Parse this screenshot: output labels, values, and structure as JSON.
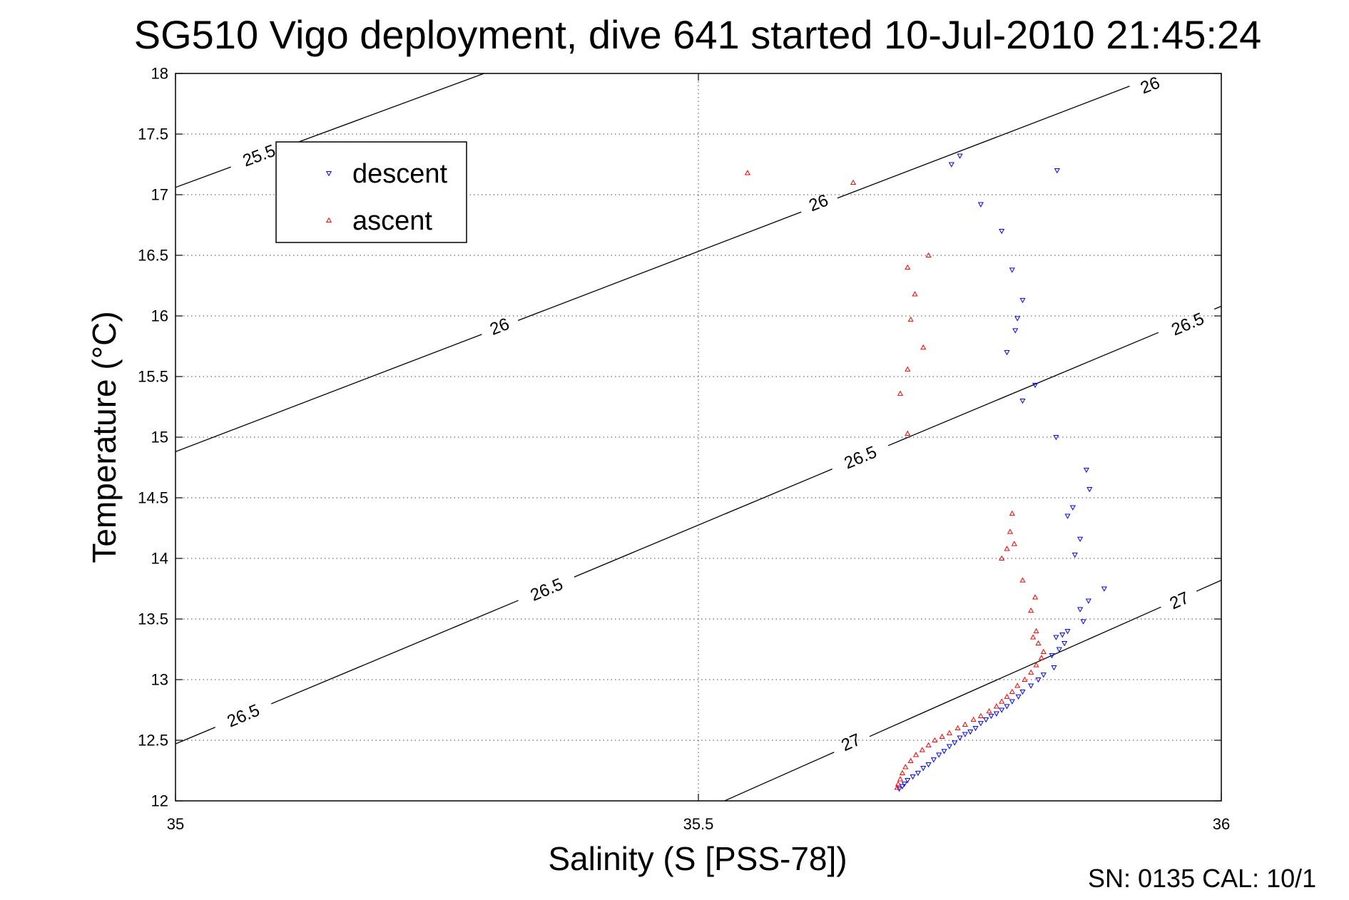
{
  "footer_text": "SN: 0135  CAL: 10/1",
  "chart_data": {
    "type": "scatter",
    "title": "SG510 Vigo deployment, dive 641 started 10-Jul-2010 21:45:24",
    "xlabel": "Salinity (S [PSS-78])",
    "ylabel": "Temperature (°C)",
    "xlim": [
      35,
      36
    ],
    "ylim": [
      12,
      18
    ],
    "x_ticks": [
      35,
      35.5,
      36
    ],
    "x_tick_labels": [
      "35",
      "35.5",
      "36"
    ],
    "y_ticks": [
      12,
      12.5,
      13,
      13.5,
      14,
      14.5,
      15,
      15.5,
      16,
      16.5,
      17,
      17.5,
      18
    ],
    "y_tick_labels": [
      "12",
      "12.5",
      "13",
      "13.5",
      "14",
      "14.5",
      "15",
      "15.5",
      "16",
      "16.5",
      "17",
      "17.5",
      "18"
    ],
    "grid": true,
    "legend": {
      "position": "top-left",
      "entries": [
        "descent",
        "ascent"
      ]
    },
    "series": [
      {
        "name": "descent",
        "marker": "triangle-down",
        "color": "#0000ff",
        "points": [
          [
            35.742,
            17.25
          ],
          [
            35.75,
            17.32
          ],
          [
            35.843,
            17.2
          ],
          [
            35.77,
            16.92
          ],
          [
            35.79,
            16.7
          ],
          [
            35.8,
            16.38
          ],
          [
            35.81,
            16.13
          ],
          [
            35.805,
            15.98
          ],
          [
            35.803,
            15.88
          ],
          [
            35.795,
            15.7
          ],
          [
            35.822,
            15.43
          ],
          [
            35.81,
            15.3
          ],
          [
            35.842,
            15.0
          ],
          [
            35.871,
            14.73
          ],
          [
            35.874,
            14.57
          ],
          [
            35.858,
            14.42
          ],
          [
            35.853,
            14.35
          ],
          [
            35.865,
            14.16
          ],
          [
            35.86,
            14.03
          ],
          [
            35.888,
            13.75
          ],
          [
            35.873,
            13.65
          ],
          [
            35.865,
            13.58
          ],
          [
            35.868,
            13.48
          ],
          [
            35.853,
            13.4
          ],
          [
            35.848,
            13.37
          ],
          [
            35.842,
            13.35
          ],
          [
            35.85,
            13.3
          ],
          [
            35.845,
            13.25
          ],
          [
            35.838,
            13.2
          ],
          [
            35.84,
            13.1
          ],
          [
            35.83,
            13.04
          ],
          [
            35.825,
            13.0
          ],
          [
            35.818,
            12.95
          ],
          [
            35.81,
            12.9
          ],
          [
            35.806,
            12.86
          ],
          [
            35.8,
            12.82
          ],
          [
            35.795,
            12.78
          ],
          [
            35.79,
            12.75
          ],
          [
            35.785,
            12.72
          ],
          [
            35.78,
            12.7
          ],
          [
            35.775,
            12.67
          ],
          [
            35.77,
            12.64
          ],
          [
            35.765,
            12.6
          ],
          [
            35.76,
            12.57
          ],
          [
            35.755,
            12.55
          ],
          [
            35.75,
            12.52
          ],
          [
            35.745,
            12.48
          ],
          [
            35.74,
            12.45
          ],
          [
            35.735,
            12.41
          ],
          [
            35.73,
            12.38
          ],
          [
            35.725,
            12.34
          ],
          [
            35.72,
            12.3
          ],
          [
            35.715,
            12.27
          ],
          [
            35.71,
            12.23
          ],
          [
            35.705,
            12.2
          ],
          [
            35.7,
            12.17
          ],
          [
            35.697,
            12.14
          ],
          [
            35.695,
            12.12
          ],
          [
            35.692,
            12.1
          ]
        ]
      },
      {
        "name": "ascent",
        "marker": "triangle-up",
        "color": "#ff0000",
        "points": [
          [
            35.547,
            17.18
          ],
          [
            35.648,
            17.1
          ],
          [
            35.72,
            16.5
          ],
          [
            35.7,
            16.4
          ],
          [
            35.707,
            16.18
          ],
          [
            35.703,
            15.97
          ],
          [
            35.715,
            15.74
          ],
          [
            35.7,
            15.56
          ],
          [
            35.693,
            15.36
          ],
          [
            35.7,
            15.03
          ],
          [
            35.8,
            14.37
          ],
          [
            35.798,
            14.22
          ],
          [
            35.802,
            14.12
          ],
          [
            35.795,
            14.08
          ],
          [
            35.79,
            14.0
          ],
          [
            35.81,
            13.82
          ],
          [
            35.822,
            13.68
          ],
          [
            35.818,
            13.57
          ],
          [
            35.823,
            13.4
          ],
          [
            35.82,
            13.35
          ],
          [
            35.825,
            13.3
          ],
          [
            35.83,
            13.23
          ],
          [
            35.828,
            13.18
          ],
          [
            35.823,
            13.12
          ],
          [
            35.818,
            13.06
          ],
          [
            35.812,
            13.0
          ],
          [
            35.805,
            12.95
          ],
          [
            35.8,
            12.9
          ],
          [
            35.795,
            12.86
          ],
          [
            35.79,
            12.82
          ],
          [
            35.785,
            12.78
          ],
          [
            35.778,
            12.74
          ],
          [
            35.77,
            12.7
          ],
          [
            35.763,
            12.67
          ],
          [
            35.755,
            12.63
          ],
          [
            35.748,
            12.6
          ],
          [
            35.74,
            12.56
          ],
          [
            35.733,
            12.53
          ],
          [
            35.726,
            12.5
          ],
          [
            35.72,
            12.46
          ],
          [
            35.714,
            12.42
          ],
          [
            35.708,
            12.38
          ],
          [
            35.703,
            12.33
          ],
          [
            35.698,
            12.28
          ],
          [
            35.695,
            12.23
          ],
          [
            35.693,
            12.18
          ],
          [
            35.691,
            12.14
          ],
          [
            35.69,
            12.11
          ]
        ]
      }
    ],
    "contours": [
      {
        "level": 25.5,
        "line": [
          [
            35,
            17.06
          ],
          [
            35.295,
            18
          ]
        ],
        "labels": [
          {
            "text": "25.5",
            "at": [
              35.08,
              17.32
            ]
          }
        ]
      },
      {
        "level": 26,
        "line": [
          [
            35,
            14.88
          ],
          [
            35.944,
            18
          ]
        ],
        "labels": [
          {
            "text": "26",
            "at": [
              35.31,
              15.91
            ]
          },
          {
            "text": "26",
            "at": [
              35.615,
              16.93
            ]
          },
          {
            "text": "26",
            "at": [
              35.932,
              17.9
            ]
          }
        ]
      },
      {
        "level": 26.5,
        "line": [
          [
            35,
            12.47
          ],
          [
            36,
            16.08
          ]
        ],
        "labels": [
          {
            "text": "26.5",
            "at": [
              35.065,
              12.7
            ]
          },
          {
            "text": "26.5",
            "at": [
              35.355,
              13.74
            ]
          },
          {
            "text": "26.5",
            "at": [
              35.655,
              14.83
            ]
          },
          {
            "text": "26.5",
            "at": [
              35.968,
              15.93
            ]
          }
        ]
      },
      {
        "level": 27,
        "line": [
          [
            35.525,
            12
          ],
          [
            36,
            13.82
          ]
        ],
        "labels": [
          {
            "text": "27",
            "at": [
              35.646,
              12.48
            ]
          },
          {
            "text": "27",
            "at": [
              35.96,
              13.65
            ]
          }
        ]
      }
    ]
  }
}
